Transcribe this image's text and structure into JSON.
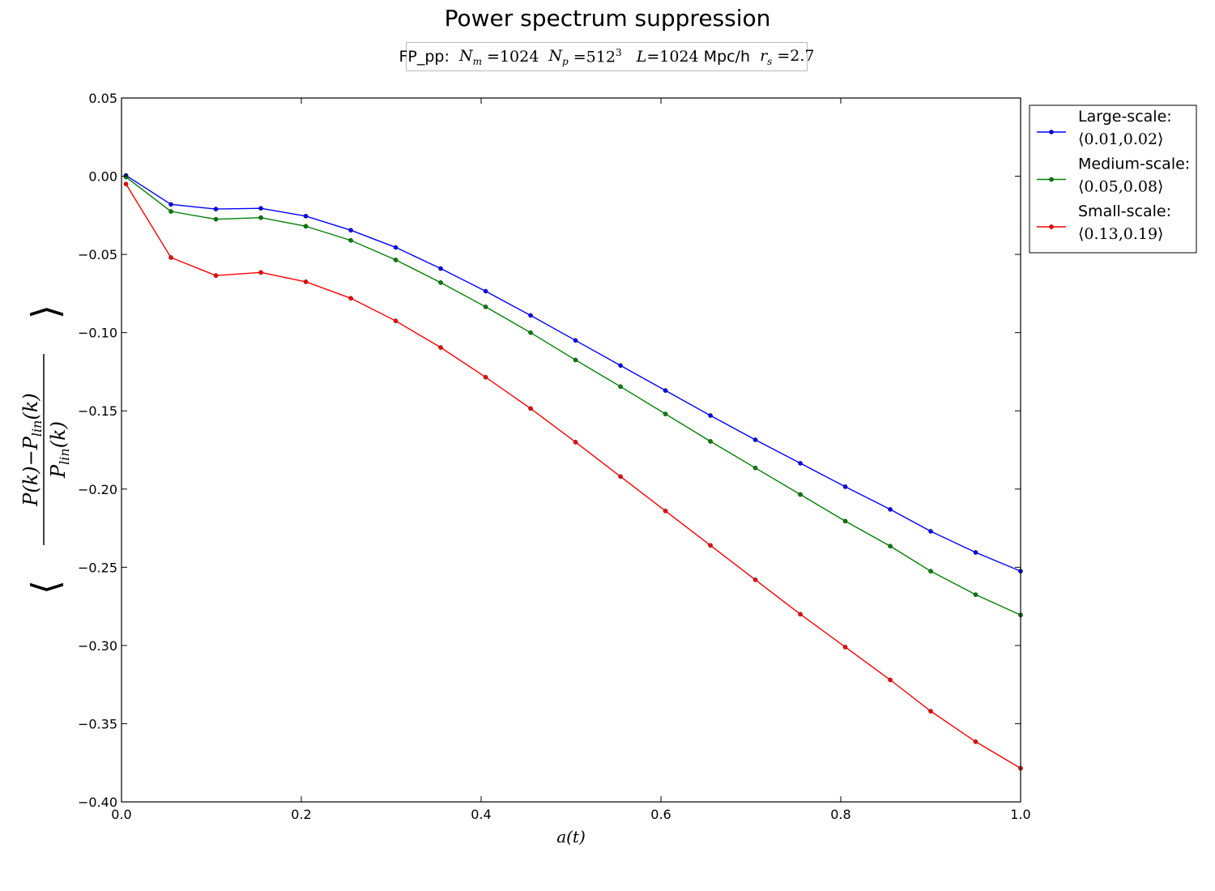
{
  "chart_data": {
    "type": "line",
    "title": "Power spectrum suppression",
    "subtitle": "FP_pp:  Nm =1024  Np =512³   L=1024 Mpc/h  rs =2.7",
    "xlabel": "a(t)",
    "ylabel": "⟨(P(k) − Plin(k)) / Plin(k)⟩",
    "xlim": [
      0.0,
      1.0
    ],
    "ylim": [
      -0.4,
      0.05
    ],
    "xticks": [
      "0.0",
      "0.2",
      "0.4",
      "0.6",
      "0.8",
      "1.0"
    ],
    "yticks": [
      "0.05",
      "0.00",
      "−0.05",
      "−0.10",
      "−0.15",
      "−0.20",
      "−0.25",
      "−0.30",
      "−0.35",
      "−0.40"
    ],
    "grid": false,
    "legend_position": "outside-top-right",
    "x": [
      0.005,
      0.055,
      0.105,
      0.155,
      0.205,
      0.255,
      0.305,
      0.355,
      0.405,
      0.455,
      0.505,
      0.555,
      0.605,
      0.655,
      0.705,
      0.755,
      0.805,
      0.855,
      0.9,
      0.95,
      1.0
    ],
    "series": [
      {
        "name": "Large-scale:",
        "range": "⟨0.01,0.02⟩",
        "color": "#0000ff",
        "values": [
          0.0005,
          -0.018,
          -0.021,
          -0.0205,
          -0.0255,
          -0.0345,
          -0.0455,
          -0.059,
          -0.0735,
          -0.089,
          -0.105,
          -0.121,
          -0.137,
          -0.153,
          -0.1685,
          -0.1835,
          -0.1985,
          -0.213,
          -0.227,
          -0.2405,
          -0.2525
        ]
      },
      {
        "name": "Medium-scale:",
        "range": "⟨0.05,0.08⟩",
        "color": "#008000",
        "values": [
          -0.0005,
          -0.0225,
          -0.0275,
          -0.0265,
          -0.032,
          -0.041,
          -0.0535,
          -0.068,
          -0.0835,
          -0.1,
          -0.1175,
          -0.1345,
          -0.152,
          -0.1695,
          -0.1865,
          -0.2035,
          -0.2205,
          -0.2365,
          -0.2525,
          -0.2675,
          -0.2805
        ]
      },
      {
        "name": "Small-scale:",
        "range": "⟨0.13,0.19⟩",
        "color": "#ff0000",
        "values": [
          -0.005,
          -0.052,
          -0.0635,
          -0.0615,
          -0.0675,
          -0.078,
          -0.0925,
          -0.1095,
          -0.1285,
          -0.1485,
          -0.17,
          -0.192,
          -0.214,
          -0.236,
          -0.258,
          -0.28,
          -0.301,
          -0.322,
          -0.342,
          -0.3615,
          -0.3785
        ]
      }
    ]
  }
}
